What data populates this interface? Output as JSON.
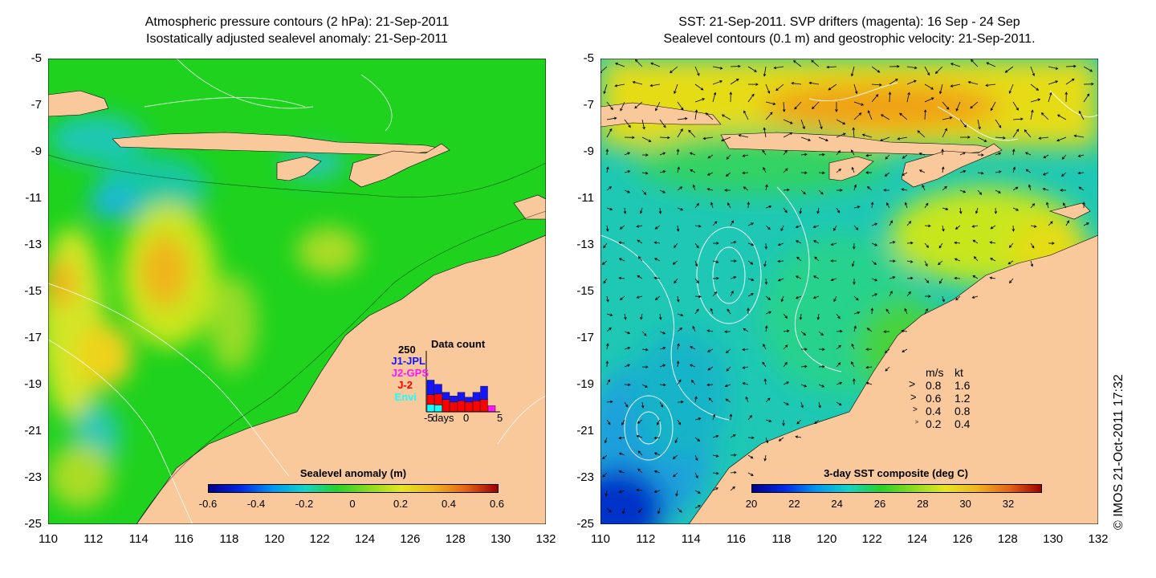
{
  "left_panel": {
    "title_line1": "Atmospheric pressure contours (2 hPa): 21-Sep-2011",
    "title_line2": "Isostatically adjusted sealevel anomaly: 21-Sep-2011",
    "colorbar": {
      "title": "Sealevel anomaly (m)",
      "ticks": [
        "-0.6",
        "-0.4",
        "-0.2",
        "0",
        "0.2",
        "0.4",
        "0.6"
      ],
      "range": [
        -0.6,
        0.6
      ]
    },
    "inset": {
      "y_max_label": "250",
      "title": "Data count",
      "x_labels": [
        "-5",
        "days",
        "0",
        "5"
      ],
      "missions": [
        {
          "name": "J1-JPL",
          "color": "#1414ff"
        },
        {
          "name": "J2-GPS",
          "color": "#ff14ff"
        },
        {
          "name": "J-2",
          "color": "#ff0000"
        },
        {
          "name": "Envi",
          "color": "#14ffff"
        }
      ],
      "bars": [
        {
          "day": -4,
          "envi": 30,
          "j2": 40,
          "j1": 60
        },
        {
          "day": -3,
          "envi": 28,
          "j2": 45,
          "j1": 40
        },
        {
          "day": -2,
          "envi": 0,
          "j2": 50,
          "j1": 30
        },
        {
          "day": -1,
          "envi": 0,
          "j2": 40,
          "j1": 25
        },
        {
          "day": 0,
          "envi": 0,
          "j2": 45,
          "j1": 35
        },
        {
          "day": 1,
          "envi": 0,
          "j2": 40,
          "j1": 20
        },
        {
          "day": 2,
          "envi": 0,
          "j2": 45,
          "j1": 35
        },
        {
          "day": 3,
          "envi": 0,
          "j2": 50,
          "j1": 55
        },
        {
          "day": 4,
          "envi": 0,
          "j2": 0,
          "j1": 0,
          "j2gps": 25
        }
      ]
    }
  },
  "right_panel": {
    "title_line1": "SST: 21-Sep-2011. SVP drifters (magenta): 16 Sep - 24 Sep",
    "title_line2": "Sealevel contours (0.1 m) and geostrophic velocity: 21-Sep-2011.",
    "colorbar": {
      "title": "3-day SST composite (deg C)",
      "ticks": [
        "20",
        "22",
        "24",
        "26",
        "28",
        "30",
        "32"
      ],
      "range": [
        20,
        33.5
      ]
    },
    "velocity_legend": {
      "header_ms": "m/s",
      "header_kt": "kt",
      "rows": [
        {
          "ms": "0.8",
          "kt": "1.6"
        },
        {
          "ms": "0.6",
          "kt": "1.2"
        },
        {
          "ms": "0.4",
          "kt": "0.8"
        },
        {
          "ms": "0.2",
          "kt": "0.4"
        }
      ]
    }
  },
  "axes": {
    "x_ticks": [
      "110",
      "112",
      "114",
      "116",
      "118",
      "120",
      "122",
      "124",
      "126",
      "128",
      "130",
      "132"
    ],
    "y_ticks": [
      "-5",
      "-7",
      "-9",
      "-11",
      "-13",
      "-15",
      "-17",
      "-19",
      "-21",
      "-23",
      "-25"
    ],
    "x_range": [
      110,
      132
    ],
    "y_range": [
      -5,
      -25
    ]
  },
  "copyright": "© IMOS 21-Oct-2011 17:32",
  "colors": {
    "land": "#f9c89b",
    "sea_green": "#1ed21e",
    "sst_yellow": "#e8e800",
    "sst_cyan": "#14c8c8"
  }
}
